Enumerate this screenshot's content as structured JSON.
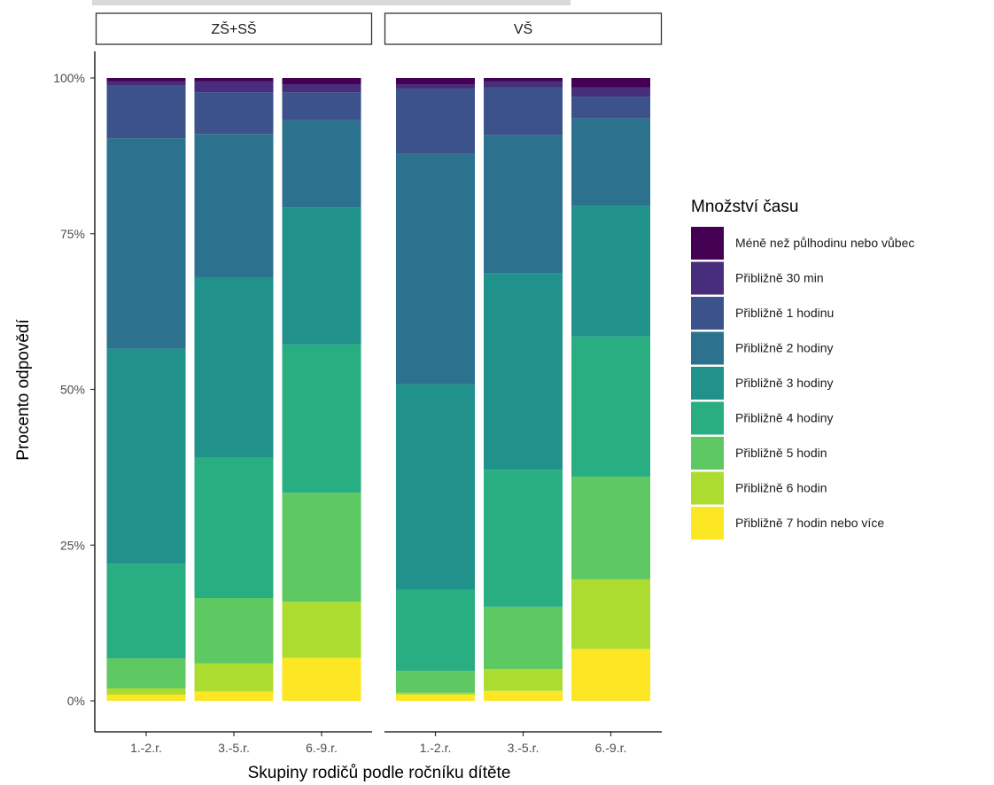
{
  "chart_data": {
    "type": "bar",
    "stacked": true,
    "percent": true,
    "xlabel": "Skupiny rodičů podle ročníku dítěte",
    "ylabel": "Procento odpovědí",
    "ylim": [
      0,
      1
    ],
    "yticks": [
      0,
      0.25,
      0.5,
      0.75,
      1.0
    ],
    "ytick_labels": [
      "0%",
      "25%",
      "50%",
      "75%",
      "100%"
    ],
    "grid": false,
    "legend": {
      "title": "Množství času",
      "position": "right"
    },
    "categories": [
      "1.-2.r.",
      "3.-5.r.",
      "6.-9.r."
    ],
    "facets": [
      "ZŠ+SŠ",
      "VŠ"
    ],
    "series": [
      {
        "name": "Méně než půlhodinu nebo vůbec",
        "color": "#440154",
        "values": {
          "ZŠ+SŠ": [
            0.005,
            0.005,
            0.01
          ],
          "VŠ": [
            0.01,
            0.005,
            0.015
          ]
        }
      },
      {
        "name": "Přibližně 30 min",
        "color": "#472d7b",
        "values": {
          "ZŠ+SŠ": [
            0.007,
            0.018,
            0.013
          ],
          "VŠ": [
            0.007,
            0.01,
            0.015
          ]
        }
      },
      {
        "name": "Přibližně 1 hodinu",
        "color": "#3b528b",
        "values": {
          "ZŠ+SŠ": [
            0.085,
            0.067,
            0.045
          ],
          "VŠ": [
            0.105,
            0.077,
            0.035
          ]
        }
      },
      {
        "name": "Přibližně 2 hodiny",
        "color": "#2c728e",
        "values": {
          "ZŠ+SŠ": [
            0.338,
            0.23,
            0.14
          ],
          "VŠ": [
            0.37,
            0.222,
            0.14
          ]
        }
      },
      {
        "name": "Přibližně 3 hodiny",
        "color": "#21918c",
        "values": {
          "ZŠ+SŠ": [
            0.345,
            0.29,
            0.22
          ],
          "VŠ": [
            0.33,
            0.315,
            0.21
          ]
        }
      },
      {
        "name": "Přibližně 4 hodiny",
        "color": "#28ae80",
        "values": {
          "ZŠ+SŠ": [
            0.152,
            0.225,
            0.238
          ],
          "VŠ": [
            0.13,
            0.22,
            0.225
          ]
        }
      },
      {
        "name": "Přibližně 5 hodin",
        "color": "#5ec962",
        "values": {
          "ZŠ+SŠ": [
            0.048,
            0.105,
            0.175
          ],
          "VŠ": [
            0.035,
            0.1,
            0.165
          ]
        }
      },
      {
        "name": "Přibližně 6 hodin",
        "color": "#addc30",
        "values": {
          "ZŠ+SŠ": [
            0.01,
            0.045,
            0.09
          ],
          "VŠ": [
            0.003,
            0.035,
            0.112
          ]
        }
      },
      {
        "name": "Přibližně 7 hodin nebo více",
        "color": "#fde725",
        "values": {
          "ZŠ+SŠ": [
            0.01,
            0.015,
            0.069
          ],
          "VŠ": [
            0.01,
            0.016,
            0.083
          ]
        }
      }
    ]
  }
}
